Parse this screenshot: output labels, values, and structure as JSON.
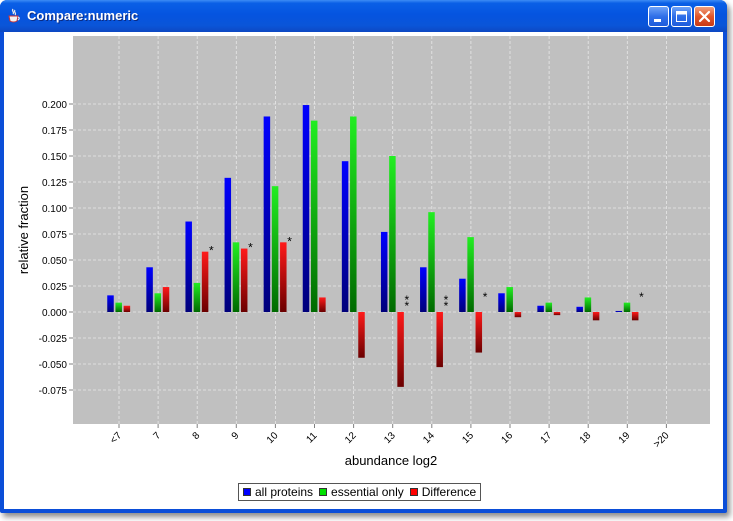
{
  "window": {
    "title": "Compare:numeric",
    "app_icon": "java-cup-icon",
    "buttons": [
      "minimize-icon",
      "maximize-icon",
      "close-icon"
    ]
  },
  "colors": {
    "plot_background": "#c0c0c0",
    "all_proteins": "#0000ff",
    "essential_only": "#00e000",
    "difference": "#ff0000",
    "titlebar": "#0554e0"
  },
  "chart_data": {
    "type": "bar",
    "title": "",
    "xlabel": "abundance log2",
    "ylabel": "relative fraction",
    "categories": [
      "<7",
      "7",
      "8",
      "9",
      "10",
      "11",
      "12",
      "13",
      "14",
      "15",
      "16",
      "17",
      "18",
      "19",
      ">20"
    ],
    "ylim": [
      -0.085,
      0.205
    ],
    "yticks": [
      "0.200",
      "0.175",
      "0.150",
      "0.125",
      "0.100",
      "0.075",
      "0.050",
      "0.025",
      "0.000",
      "-0.025",
      "-0.050",
      "-0.075"
    ],
    "grid": true,
    "legend_position": "bottom",
    "series": [
      {
        "name": "all proteins",
        "values": [
          0.016,
          0.043,
          0.087,
          0.129,
          0.188,
          0.199,
          0.145,
          0.077,
          0.043,
          0.032,
          0.018,
          0.006,
          0.005,
          0.001,
          0
        ]
      },
      {
        "name": "essential only",
        "values": [
          0.009,
          0.018,
          0.028,
          0.067,
          0.121,
          0.184,
          0.188,
          0.15,
          0.096,
          0.072,
          0.024,
          0.009,
          0.014,
          0.009,
          0
        ]
      },
      {
        "name": "Difference",
        "values": [
          0.006,
          0.024,
          0.058,
          0.061,
          0.067,
          0.014,
          -0.044,
          -0.072,
          -0.053,
          -0.039,
          -0.005,
          -0.003,
          -0.008,
          -0.008,
          0
        ]
      }
    ],
    "annotations": [
      "",
      "",
      "*",
      "*",
      "*",
      "",
      "",
      "**",
      "**",
      "*",
      "",
      "",
      "",
      "*",
      ""
    ]
  }
}
